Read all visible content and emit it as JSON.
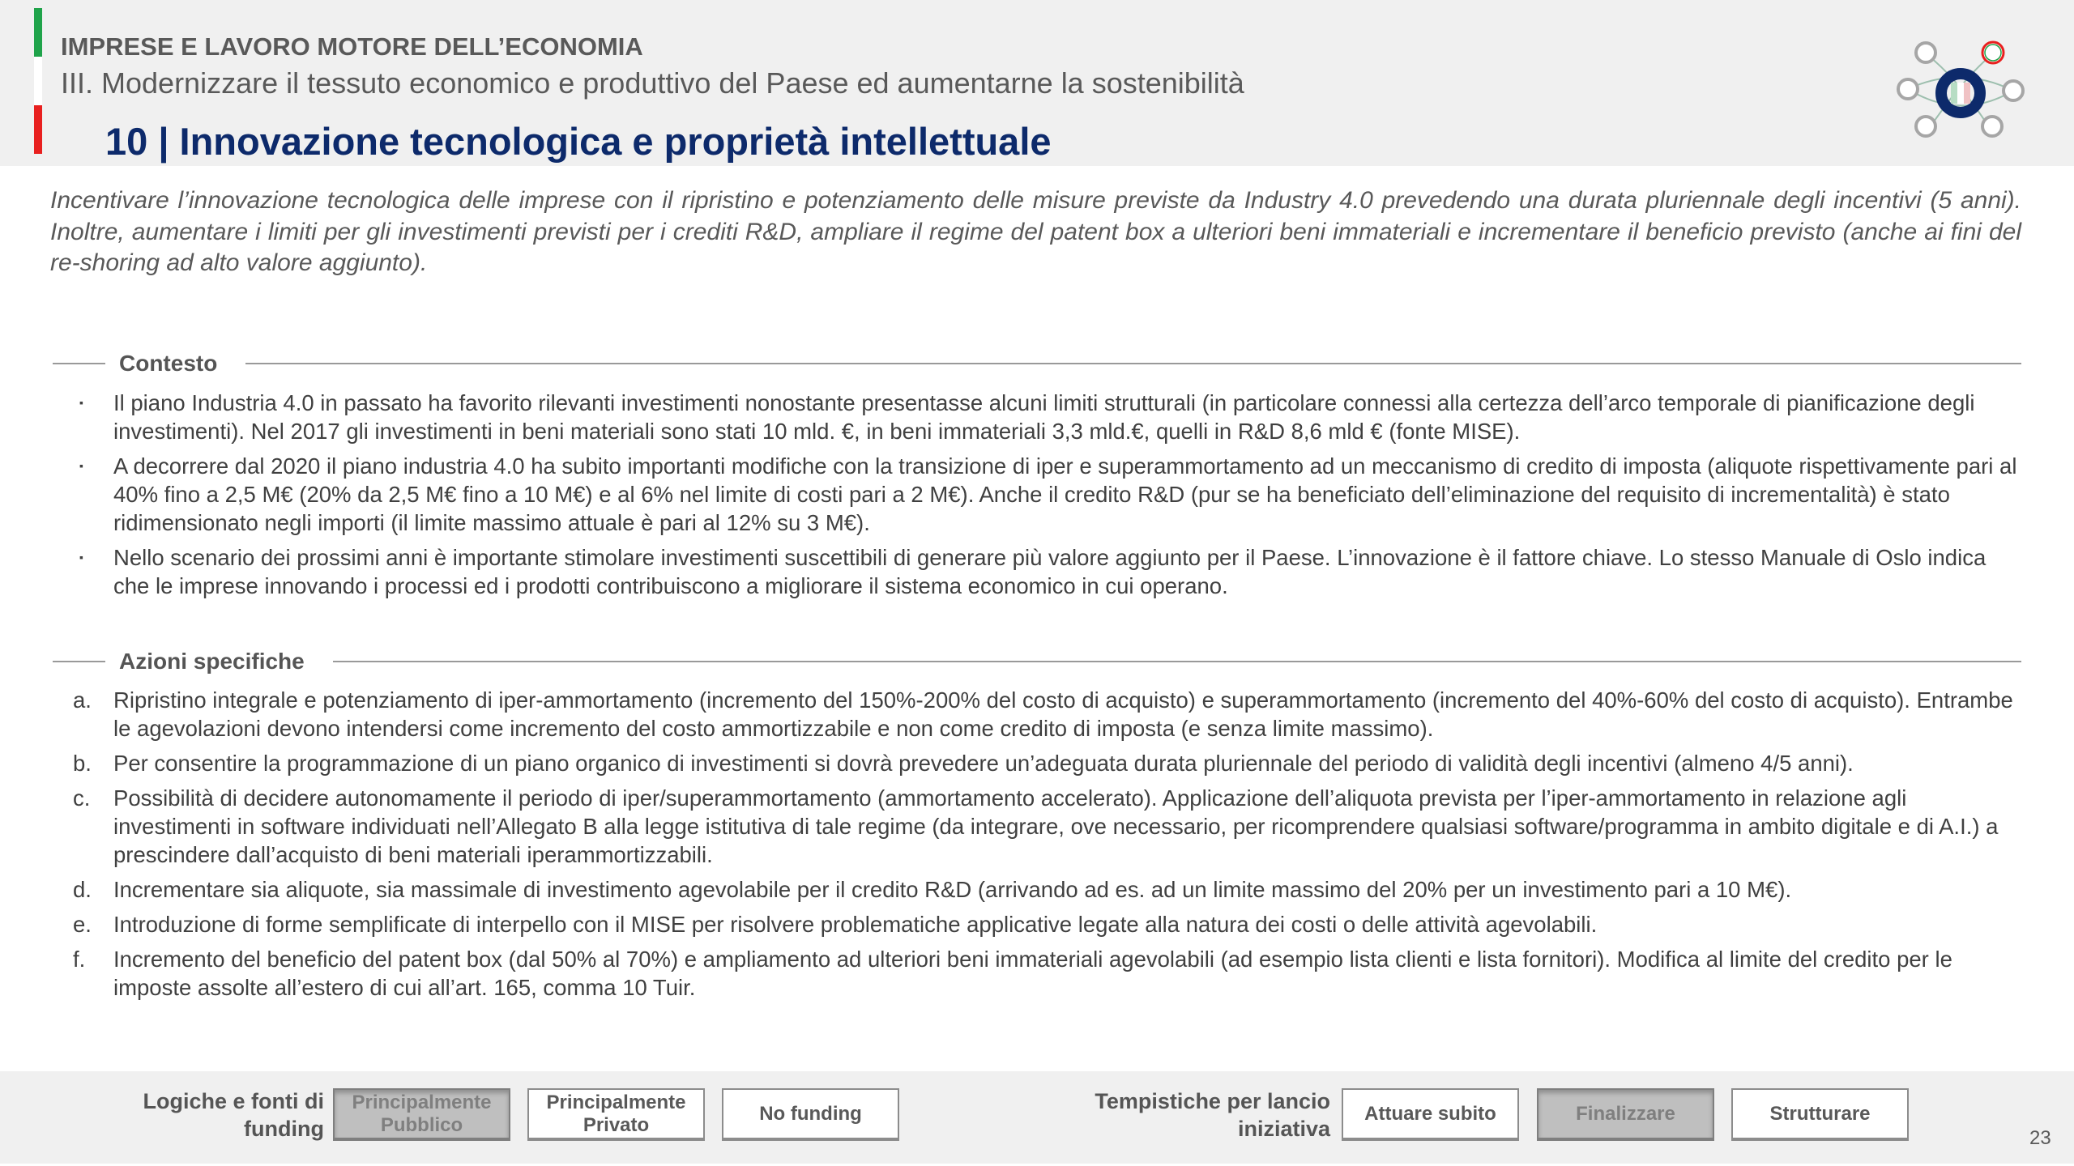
{
  "header": {
    "section": "IMPRESE E LAVORO MOTORE DELL’ECONOMIA",
    "subsection": "III.  Modernizzare il tessuto economico e produttivo del Paese ed aumentarne la sostenibilità",
    "title": "10 | Innovazione tecnologica e proprietà intellettuale",
    "flag_colors": [
      "#1fa34a",
      "#ffffff",
      "#e8201f"
    ],
    "title_color": "#0d2a6b",
    "logo_icon": "factory-network-logo"
  },
  "intro": "Incentivare l’innovazione tecnologica delle imprese con il ripristino e potenziamento delle misure previste da Industry 4.0 prevedendo una durata pluriennale degli incentivi (5 anni). Inoltre, aumentare i limiti per gli investimenti previsti per i crediti R&D, ampliare il regime del patent box a ulteriori beni immateriali e incrementare il beneficio previsto (anche ai fini del re-shoring ad alto valore aggiunto).",
  "contesto": {
    "heading": "Contesto",
    "bullet": "▪",
    "items": [
      "Il piano Industria 4.0 in passato ha favorito rilevanti investimenti nonostante presentasse alcuni limiti strutturali (in particolare connessi alla certezza dell’arco temporale di pianificazione degli investimenti). Nel 2017 gli investimenti in beni materiali sono stati 10 mld. €, in beni immateriali 3,3 mld.€, quelli in R&D 8,6 mld € (fonte MISE).",
      "A decorrere dal 2020 il piano industria 4.0 ha subito importanti modifiche con la transizione di iper e superammortamento ad un meccanismo di credito di imposta (aliquote rispettivamente pari al 40% fino a 2,5 M€ (20% da 2,5 M€ fino a 10 M€) e al 6% nel limite di costi pari a 2 M€). Anche il credito R&D (pur se ha beneficiato dell’eliminazione del requisito di incrementalità) è stato ridimensionato negli importi (il limite massimo attuale è pari al 12% su 3 M€).",
      "Nello scenario dei prossimi anni è importante stimolare investimenti suscettibili di generare più valore aggiunto per il Paese. L’innovazione è il fattore chiave. Lo stesso Manuale di Oslo indica che le imprese innovando i processi ed i prodotti contribuiscono a migliorare il sistema economico in cui operano."
    ]
  },
  "azioni": {
    "heading": "Azioni specifiche",
    "items": [
      {
        "marker": "a.",
        "text": "Ripristino integrale e potenziamento di iper-ammortamento (incremento del 150%-200% del costo di acquisto) e superammortamento (incremento del 40%-60% del costo di acquisto). Entrambe le agevolazioni devono intendersi come incremento del costo ammortizzabile e non come credito di imposta (e senza limite massimo)."
      },
      {
        "marker": "b.",
        "text": "Per consentire la programmazione di un piano organico di investimenti si dovrà prevedere un’adeguata durata pluriennale del periodo di validità degli incentivi (almeno 4/5 anni)."
      },
      {
        "marker": "c.",
        "text": "Possibilità di decidere autonomamente il periodo di iper/superammortamento (ammortamento accelerato). Applicazione dell’aliquota prevista per l’iper-ammortamento in relazione agli investimenti in software individuati nell’Allegato B alla legge istitutiva di tale regime (da integrare, ove necessario, per ricomprendere qualsiasi software/programma in ambito digitale e di A.I.) a prescindere dall’acquisto di beni materiali iperammortizzabili."
      },
      {
        "marker": "d.",
        "text": "Incrementare sia aliquote, sia massimale di investimento agevolabile per il credito R&D (arrivando ad es. ad un limite massimo del 20% per un investimento pari a 10 M€)."
      },
      {
        "marker": "e.",
        "text": "Introduzione di forme semplificate di interpello con il MISE per risolvere problematiche applicative legate alla natura dei costi o delle attività agevolabili."
      },
      {
        "marker": "f.",
        "text": "Incremento del beneficio del patent box (dal 50% al 70%) e ampliamento ad ulteriori beni immateriali agevolabili (ad esempio lista clienti e lista fornitori). Modifica al limite del credito per le imposte assolte all’estero di cui all’art. 165, comma 10 Tuir."
      }
    ]
  },
  "footer": {
    "funding_label": "Logiche e fonti di funding",
    "funding_options": [
      {
        "label": "Principalmente Pubblico",
        "selected": true
      },
      {
        "label": "Principalmente Privato",
        "selected": false
      },
      {
        "label": "No funding",
        "selected": false
      }
    ],
    "timing_label": "Tempistiche per lancio iniziativa",
    "timing_options": [
      {
        "label": "Attuare subito",
        "selected": false
      },
      {
        "label": "Finalizzare",
        "selected": true
      },
      {
        "label": "Strutturare",
        "selected": false
      }
    ],
    "page_number": "23"
  }
}
